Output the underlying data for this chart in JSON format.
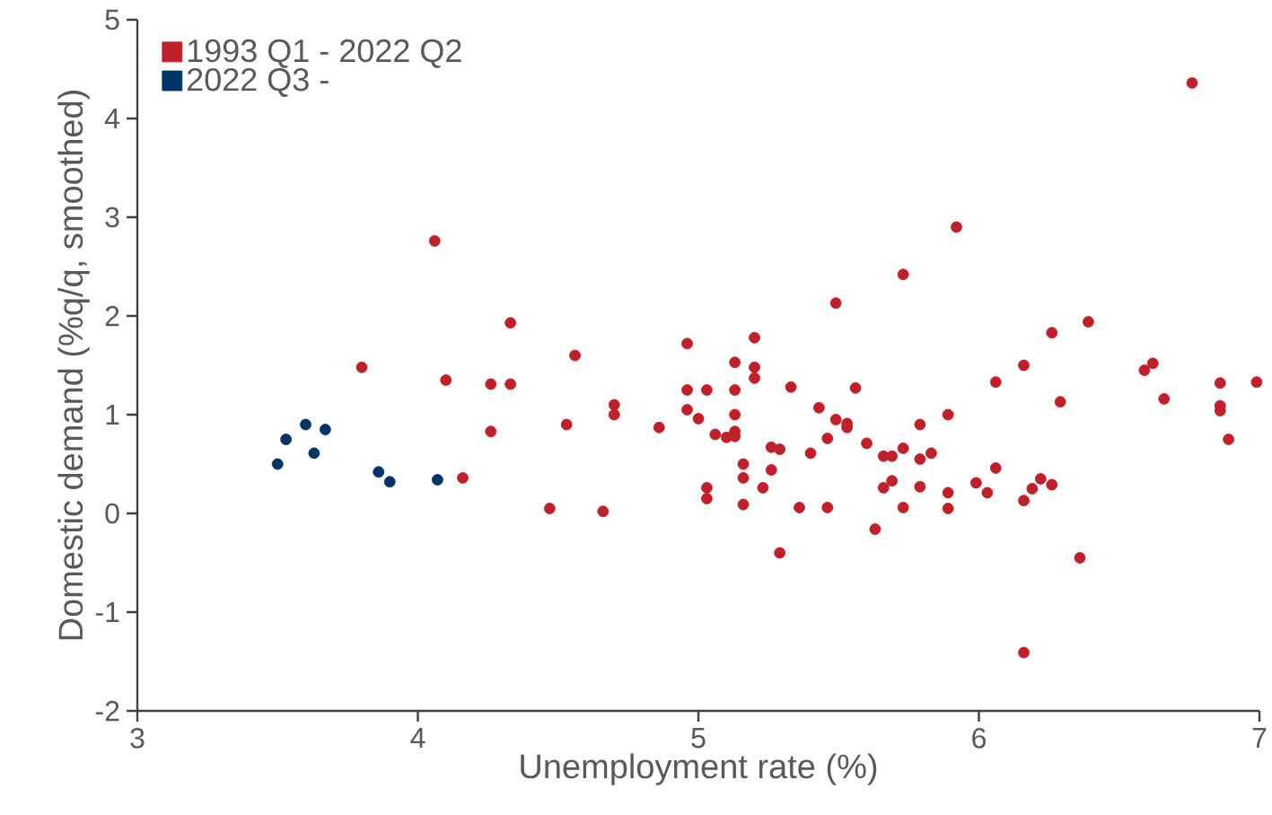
{
  "chart_data": {
    "type": "scatter",
    "xlabel": "Unemployment rate (%)",
    "ylabel": "Domestic demand (%q/q, smoothed)",
    "xlim": [
      3,
      7
    ],
    "ylim": [
      -2,
      5
    ],
    "xticks": [
      3,
      4,
      5,
      6,
      7
    ],
    "yticks": [
      -2,
      -1,
      0,
      1,
      2,
      3,
      4,
      5
    ],
    "legend": "top left",
    "marker": "circle",
    "series": [
      {
        "name": "1993 Q1 - 2022 Q2",
        "color": "#c0202a",
        "x": [
          3.8,
          4.06,
          4.1,
          4.16,
          4.26,
          4.26,
          4.33,
          4.33,
          4.47,
          4.53,
          4.56,
          4.66,
          4.7,
          4.7,
          4.86,
          4.96,
          4.96,
          4.96,
          5.0,
          5.03,
          5.03,
          5.03,
          5.06,
          5.1,
          5.13,
          5.13,
          5.13,
          5.13,
          5.13,
          5.16,
          5.16,
          5.16,
          5.2,
          5.2,
          5.2,
          5.23,
          5.26,
          5.26,
          5.29,
          5.29,
          5.33,
          5.36,
          5.4,
          5.43,
          5.46,
          5.46,
          5.49,
          5.49,
          5.53,
          5.53,
          5.56,
          5.6,
          5.63,
          5.66,
          5.66,
          5.69,
          5.69,
          5.73,
          5.73,
          5.73,
          5.79,
          5.79,
          5.79,
          5.83,
          5.89,
          5.89,
          5.89,
          5.92,
          5.99,
          6.03,
          6.06,
          6.06,
          6.16,
          6.16,
          6.16,
          6.19,
          6.22,
          6.26,
          6.26,
          6.29,
          6.36,
          6.39,
          6.59,
          6.62,
          6.66,
          6.76,
          6.86,
          6.86,
          6.86,
          6.89,
          6.99
        ],
        "values": [
          1.48,
          2.76,
          1.35,
          0.36,
          1.31,
          0.83,
          1.93,
          1.31,
          0.05,
          0.9,
          1.6,
          0.02,
          1.1,
          1.0,
          0.87,
          1.72,
          1.25,
          1.05,
          0.96,
          1.25,
          0.26,
          0.15,
          0.8,
          0.77,
          1.53,
          1.25,
          1.0,
          0.83,
          0.78,
          0.5,
          0.36,
          0.09,
          1.78,
          1.48,
          1.37,
          0.26,
          0.67,
          0.44,
          0.65,
          -0.4,
          1.28,
          0.06,
          0.61,
          1.07,
          0.76,
          0.06,
          2.13,
          0.95,
          0.91,
          0.87,
          1.27,
          0.71,
          -0.16,
          0.58,
          0.26,
          0.58,
          0.33,
          2.42,
          0.66,
          0.06,
          0.9,
          0.55,
          0.27,
          0.61,
          1.0,
          0.21,
          0.05,
          2.9,
          0.31,
          0.21,
          1.33,
          0.46,
          1.5,
          0.13,
          -1.41,
          0.25,
          0.35,
          1.83,
          0.29,
          1.13,
          -0.45,
          1.94,
          1.45,
          1.52,
          1.16,
          4.36,
          1.32,
          1.09,
          1.04,
          0.75,
          1.33
        ]
      },
      {
        "name": "2022 Q3 -",
        "color": "#003366",
        "x": [
          3.5,
          3.53,
          3.6,
          3.63,
          3.67,
          3.86,
          3.9,
          4.07
        ],
        "values": [
          0.5,
          0.75,
          0.9,
          0.61,
          0.85,
          0.42,
          0.32,
          0.34
        ]
      }
    ]
  }
}
